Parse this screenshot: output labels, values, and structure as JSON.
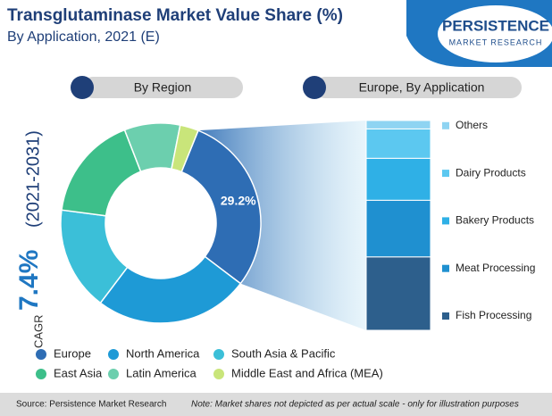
{
  "header": {
    "title": "Transglutaminase Market Value Share (%)",
    "subtitle": "By Application, 2021 (E)",
    "logo_top": "PERSISTENCE",
    "logo_bottom": "MARKET RESEARCH"
  },
  "cagr": {
    "label": "CAGR",
    "value": "7.4%",
    "period": "(2021-2031)"
  },
  "chart_data": [
    {
      "type": "donut",
      "title": "By Region",
      "categories": [
        "Europe",
        "North America",
        "South Asia & Pacific",
        "East Asia",
        "Latin America",
        "Middle East and Africa (MEA)"
      ],
      "values": [
        29.2,
        25,
        16.8,
        17,
        9,
        3
      ],
      "value_labels": [
        "29.2%",
        null,
        null,
        null,
        null,
        null
      ],
      "colors": [
        "#2e6db4",
        "#1e9ad6",
        "#3bbfd8",
        "#3dbf8a",
        "#6ccfae",
        "#c9e57a"
      ]
    },
    {
      "type": "stacked-bar",
      "title": "Europe, By Application",
      "series": [
        {
          "name": "Fish Processing",
          "color": "#2d5f8c",
          "values": [
            35
          ]
        },
        {
          "name": "Meat Processing",
          "color": "#1f90d0",
          "values": [
            27
          ]
        },
        {
          "name": "Bakery Products",
          "color": "#2fb0e6",
          "values": [
            20
          ]
        },
        {
          "name": "Dairy Products",
          "color": "#5cc8f0",
          "values": [
            14
          ]
        },
        {
          "name": "Others",
          "color": "#8fd4f2",
          "values": [
            4
          ]
        }
      ]
    }
  ],
  "footer": {
    "source": "Source: Persistence Market Research",
    "note": "Note: Market shares not depicted as per actual scale - only for illustration purposes"
  }
}
